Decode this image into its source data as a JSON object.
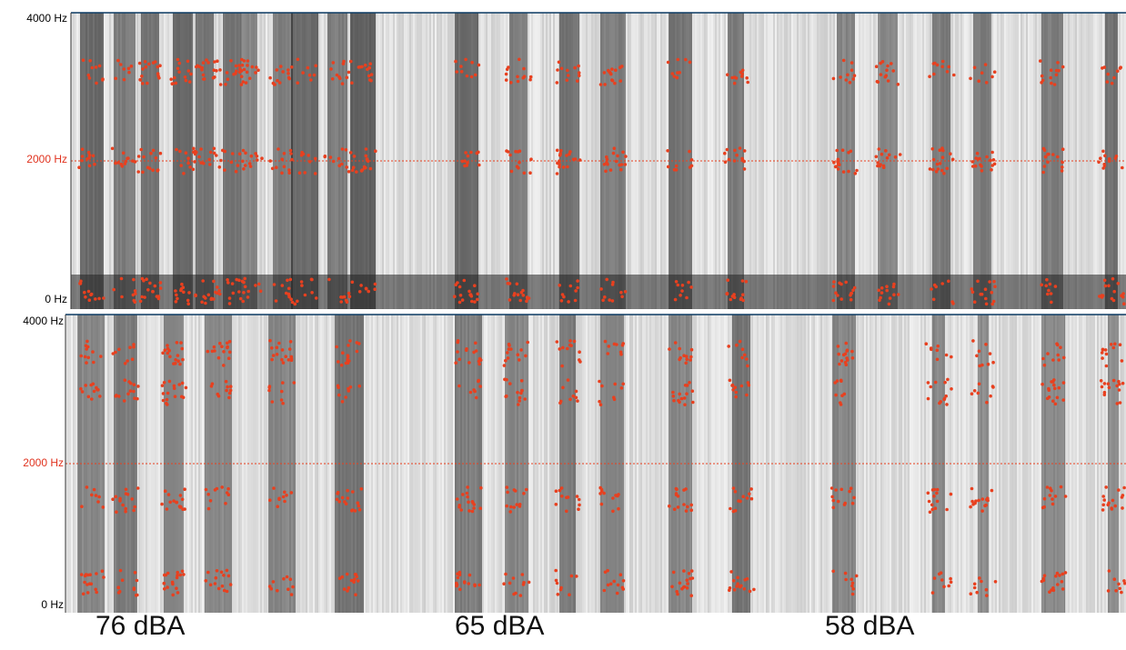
{
  "panels": [
    {
      "id": "top",
      "y_axis": {
        "max_label": "4000 Hz",
        "mid_label": "2000 Hz",
        "min_label": "0 Hz"
      },
      "reference_line_hz": 2000,
      "colors": {
        "formant": "#e8401f",
        "reference": "#e8401f"
      }
    },
    {
      "id": "bottom",
      "y_axis": {
        "max_label": "4000 Hz",
        "mid_label": "2000 Hz",
        "min_label": "0 Hz"
      },
      "reference_line_hz": 2000,
      "colors": {
        "formant": "#e8401f",
        "reference": "#e8401f"
      }
    }
  ],
  "noise_levels": [
    "76 dBA",
    "65 dBA",
    "58 dBA"
  ],
  "style": {
    "background": "#ffffff",
    "frame": "#0b3a63"
  }
}
